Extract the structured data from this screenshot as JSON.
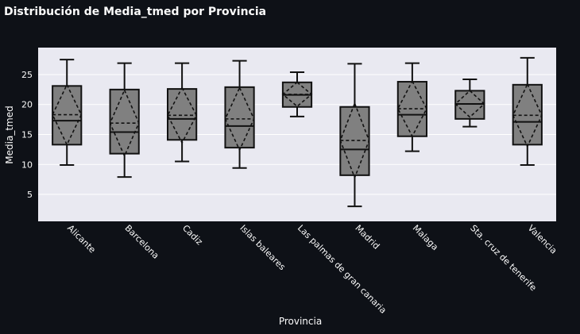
{
  "chart_data": {
    "type": "box",
    "title": "Distribución de Media_tmed por Provincia",
    "xlabel": "Provincia",
    "ylabel": "Media_tmed",
    "ylim": [
      0.5,
      29.5
    ],
    "yticks": [
      5,
      10,
      15,
      20,
      25
    ],
    "grid": true,
    "legend": "none",
    "box_color": "#808080",
    "plot_background": "#e9e9f1",
    "page_background": "#0e1117",
    "categories": [
      "Alicante",
      "Barcelona",
      "Cadiz",
      "Islas baleares",
      "Las palmas de gran canaria",
      "Madrid",
      "Malaga",
      "Sta. cruz de tenerife",
      "Valencia"
    ],
    "boxes": [
      {
        "category": "Alicante",
        "min": 9.9,
        "q1": 13.3,
        "median": 17.3,
        "q3": 23.1,
        "max": 27.5,
        "mean": 18.3,
        "sd": 5.0
      },
      {
        "category": "Barcelona",
        "min": 7.9,
        "q1": 11.8,
        "median": 15.4,
        "q3": 22.5,
        "max": 26.9,
        "mean": 16.9,
        "sd": 5.5
      },
      {
        "category": "Cadiz",
        "min": 10.5,
        "q1": 14.1,
        "median": 17.6,
        "q3": 22.6,
        "max": 26.9,
        "mean": 18.2,
        "sd": 4.6
      },
      {
        "category": "Islas baleares",
        "min": 9.4,
        "q1": 12.8,
        "median": 16.4,
        "q3": 22.9,
        "max": 27.3,
        "mean": 17.6,
        "sd": 5.2
      },
      {
        "category": "Las palmas de gran canaria",
        "min": 18.0,
        "q1": 19.6,
        "median": 21.6,
        "q3": 23.7,
        "max": 25.4,
        "mean": 21.7,
        "sd": 2.0
      },
      {
        "category": "Madrid",
        "min": 3.0,
        "q1": 8.2,
        "median": 12.5,
        "q3": 19.6,
        "max": 26.8,
        "mean": 14.0,
        "sd": 6.2
      },
      {
        "category": "Malaga",
        "min": 12.2,
        "q1": 14.7,
        "median": 18.3,
        "q3": 23.8,
        "max": 26.9,
        "mean": 19.3,
        "sd": 4.6
      },
      {
        "category": "Sta. cruz de tenerife",
        "min": 16.3,
        "q1": 17.6,
        "median": 20.1,
        "q3": 22.3,
        "max": 24.2,
        "mean": 20.1,
        "sd": 2.2
      },
      {
        "category": "Valencia",
        "min": 9.9,
        "q1": 13.3,
        "median": 17.1,
        "q3": 23.3,
        "max": 27.8,
        "mean": 18.2,
        "sd": 5.2
      }
    ]
  }
}
